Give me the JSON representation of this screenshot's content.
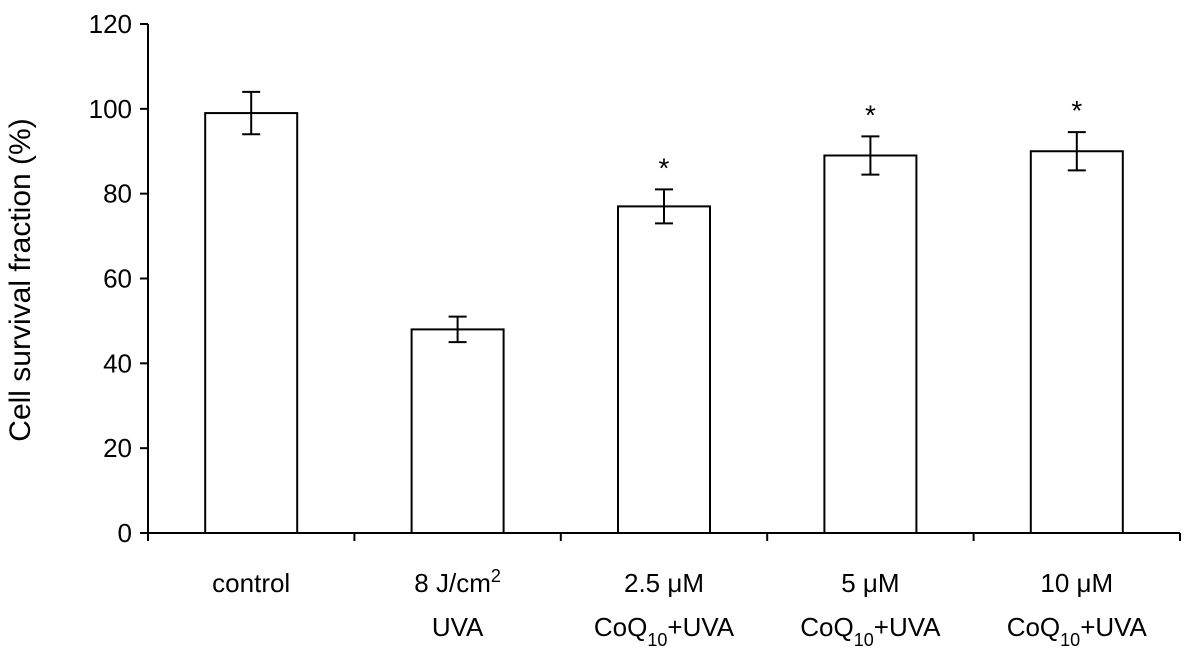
{
  "chart_data": {
    "type": "bar",
    "ylabel": "Cell survival fraction (%)",
    "ylim": [
      0,
      120
    ],
    "yticks": [
      "0",
      "20",
      "40",
      "60",
      "80",
      "100",
      "120"
    ],
    "categories": [
      {
        "lines": [
          [
            {
              "t": "control"
            }
          ]
        ]
      },
      {
        "lines": [
          [
            {
              "t": "8 J/cm"
            },
            {
              "t": "2",
              "sup": true
            }
          ],
          [
            {
              "t": "UVA"
            }
          ]
        ]
      },
      {
        "lines": [
          [
            {
              "t": "2.5 μM"
            }
          ],
          [
            {
              "t": "CoQ"
            },
            {
              "t": "10",
              "sub": true
            },
            {
              "t": "+UVA"
            }
          ]
        ]
      },
      {
        "lines": [
          [
            {
              "t": "5 μM"
            }
          ],
          [
            {
              "t": "CoQ"
            },
            {
              "t": "10",
              "sub": true
            },
            {
              "t": "+UVA"
            }
          ]
        ]
      },
      {
        "lines": [
          [
            {
              "t": "10 μM"
            }
          ],
          [
            {
              "t": "CoQ"
            },
            {
              "t": "10",
              "sub": true
            },
            {
              "t": "+UVA"
            }
          ]
        ]
      }
    ],
    "values": [
      99,
      48,
      77,
      89,
      90
    ],
    "errors": [
      5,
      3,
      4,
      4.5,
      4.5
    ],
    "annotations": [
      "",
      "",
      "*",
      "*",
      "*"
    ],
    "grid": false,
    "legend": "none"
  }
}
